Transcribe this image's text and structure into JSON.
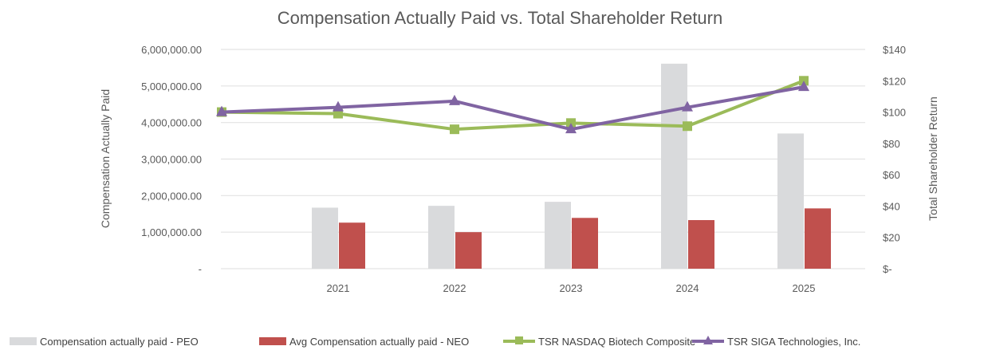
{
  "chart_data": {
    "type": "bar",
    "title": "Compensation Actually Paid vs. Total Shareholder Return",
    "categories": [
      "",
      "2021",
      "2022",
      "2023",
      "2024",
      "2025"
    ],
    "y_left": {
      "label": "Compensation Actually Paid",
      "range": [
        0,
        6000000
      ],
      "ticks": [
        0,
        1000000,
        2000000,
        3000000,
        4000000,
        5000000,
        6000000
      ],
      "tick_labels": [
        "-",
        "1,000,000.00",
        "2,000,000.00",
        "3,000,000.00",
        "4,000,000.00",
        "5,000,000.00",
        "6,000,000.00"
      ]
    },
    "y_right": {
      "label": "Total Shareholder Return",
      "range": [
        0,
        140
      ],
      "ticks": [
        0,
        20,
        40,
        60,
        80,
        100,
        120,
        140
      ],
      "tick_labels": [
        "$-",
        "$20",
        "$40",
        "$60",
        "$80",
        "$100",
        "$120",
        "$140"
      ]
    },
    "grid": true,
    "legend_position": "bottom",
    "series": [
      {
        "name": "Compensation actually paid - PEO",
        "type": "bar",
        "axis": "left",
        "color": "#d9dadc",
        "values": [
          null,
          1670000,
          1720000,
          1830000,
          5610000,
          3700000
        ]
      },
      {
        "name": "Avg Compensation actually paid - NEO",
        "type": "bar",
        "axis": "left",
        "color": "#c0504d",
        "values": [
          null,
          1260000,
          1000000,
          1390000,
          1330000,
          1650000
        ]
      },
      {
        "name": "TSR NASDAQ Biotech Composite",
        "type": "line",
        "axis": "right",
        "marker": "square",
        "color": "#9bbb59",
        "values": [
          100,
          99,
          89,
          93,
          91,
          120
        ]
      },
      {
        "name": "TSR SIGA Technologies, Inc.",
        "type": "line",
        "axis": "right",
        "marker": "triangle",
        "color": "#8064a2",
        "values": [
          100,
          103,
          107,
          89,
          103,
          116
        ]
      }
    ]
  }
}
